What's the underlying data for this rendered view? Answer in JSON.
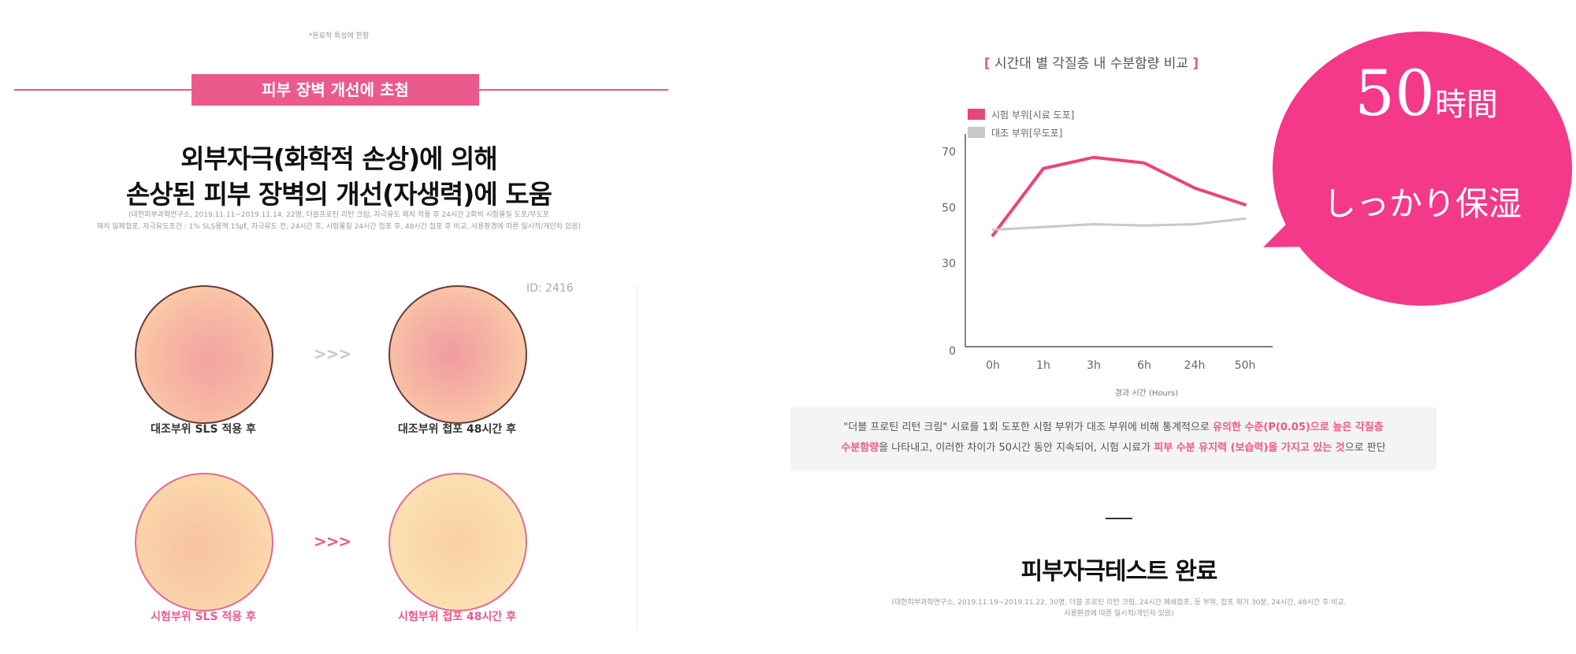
{
  "left": {
    "top_note": "*원료적 특성에 한함",
    "banner": "피부 장벽 개선에 초첨",
    "headline_1": "외부자극(화학적 손상)에 의해",
    "headline_2": "손상된 피부 장벽의 개선(자생력)에 도움",
    "source_1": "(대한피부과학연구소, 2019.11.11~2019.11.14, 22명, 더블프로틴 리턴 크림, 자극유도 패치 적용 후 24시간 2회씩 시험물질 도포/무도포",
    "source_2": "패치 일페첩포, 자극유도조건 : 1% SLS용액 15㎕, 자극유도 전, 24시간 후, 시험물질 24시간 첩포 후, 48시간 첩포 후 비교, 사용환경에 따른 일시적/개인차 있음)",
    "id_label": "ID: 2416",
    "arrow": ">>>",
    "captions": {
      "ctrl_sls": "대조부위 SLS 적용 후",
      "ctrl_48": "대조부위 첩포 48시간 후",
      "test_sls": "시험부위 SLS 적용 후",
      "test_48": "시험부위 첩포 48시간 후"
    }
  },
  "right": {
    "chart_title_open": "[",
    "chart_title": " 시간대 별 각질층 내 수분함량 비교 ",
    "chart_title_close": "]",
    "desc_line1_a": "\"더블 프로틴 리턴 크림\" 시료를 1회 도포한 시험 부위가 대조 부위에 비해 통계적으로 ",
    "desc_line1_hl": "유의한 수준(P(0.05)으로 높은 각질층",
    "desc_line2_hl1": "수분함량",
    "desc_line2_b": "을 나타내고, 이러한 차이가 50시간 동안 지속되어, 시험 시료가 ",
    "desc_line2_hl2": "피부 수분 유지력 (보습력)을 가지고 있는 것",
    "desc_line2_c": "으로 판단",
    "done_title": "피부자극테스트 완료",
    "done_src_1": "(대한피부과학연구소, 2019.11.19~2019.11.22, 30명, 더블 프로틴 리턴 크림, 24시간 폐쇄첩포, 등 부위, 첩포 제거 30분, 24시간, 48시간 후 비교,",
    "done_src_2": "사용환경에 따른 일시적/개인차 있음)"
  },
  "bubble": {
    "big": "50",
    "small": "時間",
    "line2": "しっかり保湿",
    "color": "#f4388a"
  },
  "chart_data": {
    "type": "line",
    "categories": [
      "0h",
      "1h",
      "3h",
      "6h",
      "24h",
      "50h"
    ],
    "series": [
      {
        "name": "시험 부위[시료 도포]",
        "values": [
          40,
          64,
          68,
          66,
          57,
          51
        ],
        "color": "#e8457a"
      },
      {
        "name": "대조 부위[무도포]",
        "values": [
          42,
          43,
          44,
          43.5,
          44,
          46
        ],
        "color": "#c8c8c8"
      }
    ],
    "title": "시간대 별 각질층 내 수분함량 비교",
    "xlabel": "경과 시간 (Hours)",
    "ylabel": "",
    "yticks": [
      0,
      30,
      50,
      70
    ],
    "ylim": [
      0,
      75
    ],
    "grid": false,
    "legend": "top-left"
  }
}
